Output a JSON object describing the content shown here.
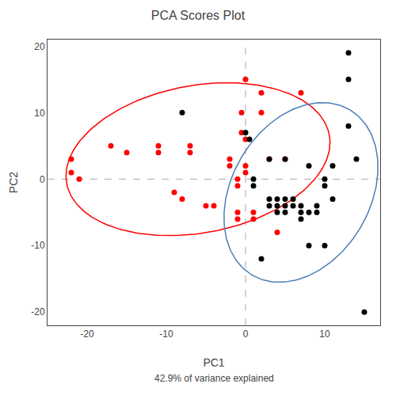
{
  "chart_data": {
    "type": "scatter",
    "title": "PCA Scores Plot",
    "subtitle": "42.9% of variance explained",
    "xlabel": "PC1",
    "ylabel": "PC2",
    "xlim": [
      -25,
      17
    ],
    "ylim": [
      -22,
      21
    ],
    "xticks": [
      -20,
      -10,
      0,
      10
    ],
    "yticks": [
      -20,
      -10,
      0,
      10,
      20
    ],
    "grid": false,
    "reference_lines": {
      "x": 0,
      "y": 0,
      "color": "#aaaaaa",
      "line_style": "dashed"
    },
    "series": [
      {
        "color": "red",
        "x": [
          -22,
          -22,
          -21,
          -17,
          -15,
          -11,
          -11,
          -9,
          -8,
          -7,
          -7,
          -5,
          -4,
          -2,
          -2,
          -1,
          -1,
          -1,
          -1,
          0,
          -0.5,
          -0.5,
          0,
          0,
          0,
          1,
          1,
          2,
          2,
          3,
          4,
          5,
          7
        ],
        "values": [
          1,
          3,
          0,
          5,
          4,
          4,
          5,
          -2,
          -3,
          4,
          5,
          -4,
          -4,
          2,
          3,
          0,
          -1,
          -5,
          -6,
          15,
          10,
          7,
          6,
          2,
          1,
          -5,
          -6,
          13,
          10,
          3,
          -8,
          3,
          13
        ]
      },
      {
        "color": "black",
        "x": [
          -8,
          0,
          0.5,
          1,
          1,
          2,
          3,
          3,
          3,
          4,
          4,
          4,
          5,
          5,
          5,
          5,
          6,
          6,
          7,
          7,
          7,
          8,
          8,
          8,
          9,
          9,
          10,
          10,
          10,
          11,
          11,
          13,
          13,
          13,
          14,
          15
        ],
        "values": [
          10,
          7,
          6,
          0,
          -1,
          -12,
          3,
          -3,
          -4,
          -3,
          -4,
          -5,
          3,
          -3,
          -4,
          -5,
          -3,
          -4,
          -4,
          -5,
          -6,
          2,
          -5,
          -10,
          -4,
          -5,
          0,
          -1,
          -10,
          2,
          -3,
          19,
          15,
          8,
          3,
          -20
        ]
      }
    ],
    "ellipses": [
      {
        "center_x": -6.0,
        "center_y": 3.0,
        "width": 34,
        "height": 22,
        "angle": 15,
        "color": "red"
      },
      {
        "center_x": 7.0,
        "center_y": -2.0,
        "width": 18,
        "height": 28,
        "angle": -20,
        "color": "#4a7fb5"
      }
    ]
  }
}
